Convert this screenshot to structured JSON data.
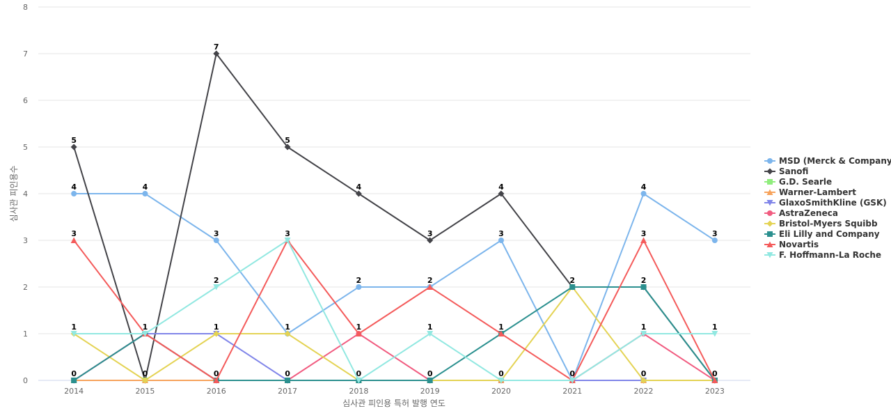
{
  "chart_data": {
    "type": "line",
    "title": "",
    "xlabel": "심사관 피인용 특허 발행 연도",
    "ylabel": "심사관 피인용수",
    "ylim": [
      0,
      8
    ],
    "yticks": [
      0,
      1,
      2,
      3,
      4,
      5,
      6,
      7,
      8
    ],
    "grid": true,
    "legend_position": "right",
    "categories": [
      "2014",
      "2015",
      "2016",
      "2017",
      "2018",
      "2019",
      "2020",
      "2021",
      "2022",
      "2023"
    ],
    "series": [
      {
        "name": "MSD (Merck & Company)",
        "color": "#7cb5ec",
        "marker": "circle",
        "values": [
          4,
          4,
          3,
          1,
          2,
          2,
          3,
          0,
          4,
          3
        ]
      },
      {
        "name": "Sanofi",
        "color": "#434348",
        "marker": "diamond",
        "values": [
          5,
          0,
          7,
          5,
          4,
          3,
          4,
          2,
          2,
          0
        ]
      },
      {
        "name": "G.D. Searle",
        "color": "#90ed7d",
        "marker": "square",
        "values": [
          0,
          0,
          0,
          0,
          0,
          0,
          0,
          0,
          0,
          0
        ]
      },
      {
        "name": "Warner-Lambert",
        "color": "#f7a35c",
        "marker": "triangle",
        "values": [
          0,
          0,
          0,
          0,
          0,
          0,
          0,
          0,
          0,
          0
        ]
      },
      {
        "name": "GlaxoSmithKline (GSK)",
        "color": "#8085e9",
        "marker": "triangle-down",
        "values": [
          0,
          1,
          1,
          0,
          0,
          0,
          0,
          0,
          0,
          0
        ]
      },
      {
        "name": "AstraZeneca",
        "color": "#f15c80",
        "marker": "circle",
        "values": [
          0,
          1,
          0,
          0,
          1,
          0,
          0,
          0,
          1,
          0
        ]
      },
      {
        "name": "Bristol-Myers Squibb",
        "color": "#e4d354",
        "marker": "diamond",
        "values": [
          1,
          0,
          1,
          1,
          0,
          0,
          0,
          2,
          0,
          0
        ]
      },
      {
        "name": "Eli Lilly and Company",
        "color": "#2b908f",
        "marker": "square",
        "values": [
          0,
          1,
          0,
          0,
          0,
          0,
          1,
          2,
          2,
          0
        ]
      },
      {
        "name": "Novartis",
        "color": "#f45b5b",
        "marker": "triangle",
        "values": [
          3,
          1,
          0,
          3,
          1,
          2,
          1,
          0,
          3,
          0
        ]
      },
      {
        "name": "F. Hoffmann-La Roche",
        "color": "#91e8e1",
        "marker": "triangle-down",
        "values": [
          1,
          1,
          2,
          3,
          0,
          1,
          0,
          0,
          1,
          1
        ]
      }
    ],
    "data_labels": [
      {
        "series": "Sanofi",
        "index": 0,
        "text": "5"
      },
      {
        "series": "MSD (Merck & Company)",
        "index": 0,
        "text": "4"
      },
      {
        "series": "Novartis",
        "index": 0,
        "text": "3"
      },
      {
        "series": "F. Hoffmann-La Roche",
        "index": 0,
        "text": "1"
      },
      {
        "series": "G.D. Searle",
        "index": 0,
        "text": "0"
      },
      {
        "series": "MSD (Merck & Company)",
        "index": 1,
        "text": "4"
      },
      {
        "series": "F. Hoffmann-La Roche",
        "index": 1,
        "text": "1"
      },
      {
        "series": "Sanofi",
        "index": 1,
        "text": "0"
      },
      {
        "series": "Sanofi",
        "index": 2,
        "text": "7"
      },
      {
        "series": "MSD (Merck & Company)",
        "index": 2,
        "text": "3"
      },
      {
        "series": "F. Hoffmann-La Roche",
        "index": 2,
        "text": "2"
      },
      {
        "series": "Bristol-Myers Squibb",
        "index": 2,
        "text": "1"
      },
      {
        "series": "Novartis",
        "index": 2,
        "text": "0"
      },
      {
        "series": "Sanofi",
        "index": 3,
        "text": "5"
      },
      {
        "series": "F. Hoffmann-La Roche",
        "index": 3,
        "text": "3"
      },
      {
        "series": "MSD (Merck & Company)",
        "index": 3,
        "text": "1"
      },
      {
        "series": "G.D. Searle",
        "index": 3,
        "text": "0"
      },
      {
        "series": "Sanofi",
        "index": 4,
        "text": "4"
      },
      {
        "series": "MSD (Merck & Company)",
        "index": 4,
        "text": "2"
      },
      {
        "series": "Novartis",
        "index": 4,
        "text": "1"
      },
      {
        "series": "G.D. Searle",
        "index": 4,
        "text": "0"
      },
      {
        "series": "Sanofi",
        "index": 5,
        "text": "3"
      },
      {
        "series": "MSD (Merck & Company)",
        "index": 5,
        "text": "2"
      },
      {
        "series": "F. Hoffmann-La Roche",
        "index": 5,
        "text": "1"
      },
      {
        "series": "G.D. Searle",
        "index": 5,
        "text": "0"
      },
      {
        "series": "Sanofi",
        "index": 6,
        "text": "4"
      },
      {
        "series": "MSD (Merck & Company)",
        "index": 6,
        "text": "3"
      },
      {
        "series": "Novartis",
        "index": 6,
        "text": "1"
      },
      {
        "series": "G.D. Searle",
        "index": 6,
        "text": "0"
      },
      {
        "series": "Sanofi",
        "index": 7,
        "text": "2"
      },
      {
        "series": "G.D. Searle",
        "index": 7,
        "text": "0"
      },
      {
        "series": "MSD (Merck & Company)",
        "index": 8,
        "text": "4"
      },
      {
        "series": "Novartis",
        "index": 8,
        "text": "3"
      },
      {
        "series": "Eli Lilly and Company",
        "index": 8,
        "text": "2"
      },
      {
        "series": "F. Hoffmann-La Roche",
        "index": 8,
        "text": "1"
      },
      {
        "series": "G.D. Searle",
        "index": 8,
        "text": "0"
      },
      {
        "series": "MSD (Merck & Company)",
        "index": 9,
        "text": "3"
      },
      {
        "series": "F. Hoffmann-La Roche",
        "index": 9,
        "text": "1"
      },
      {
        "series": "G.D. Searle",
        "index": 9,
        "text": "0"
      }
    ]
  }
}
